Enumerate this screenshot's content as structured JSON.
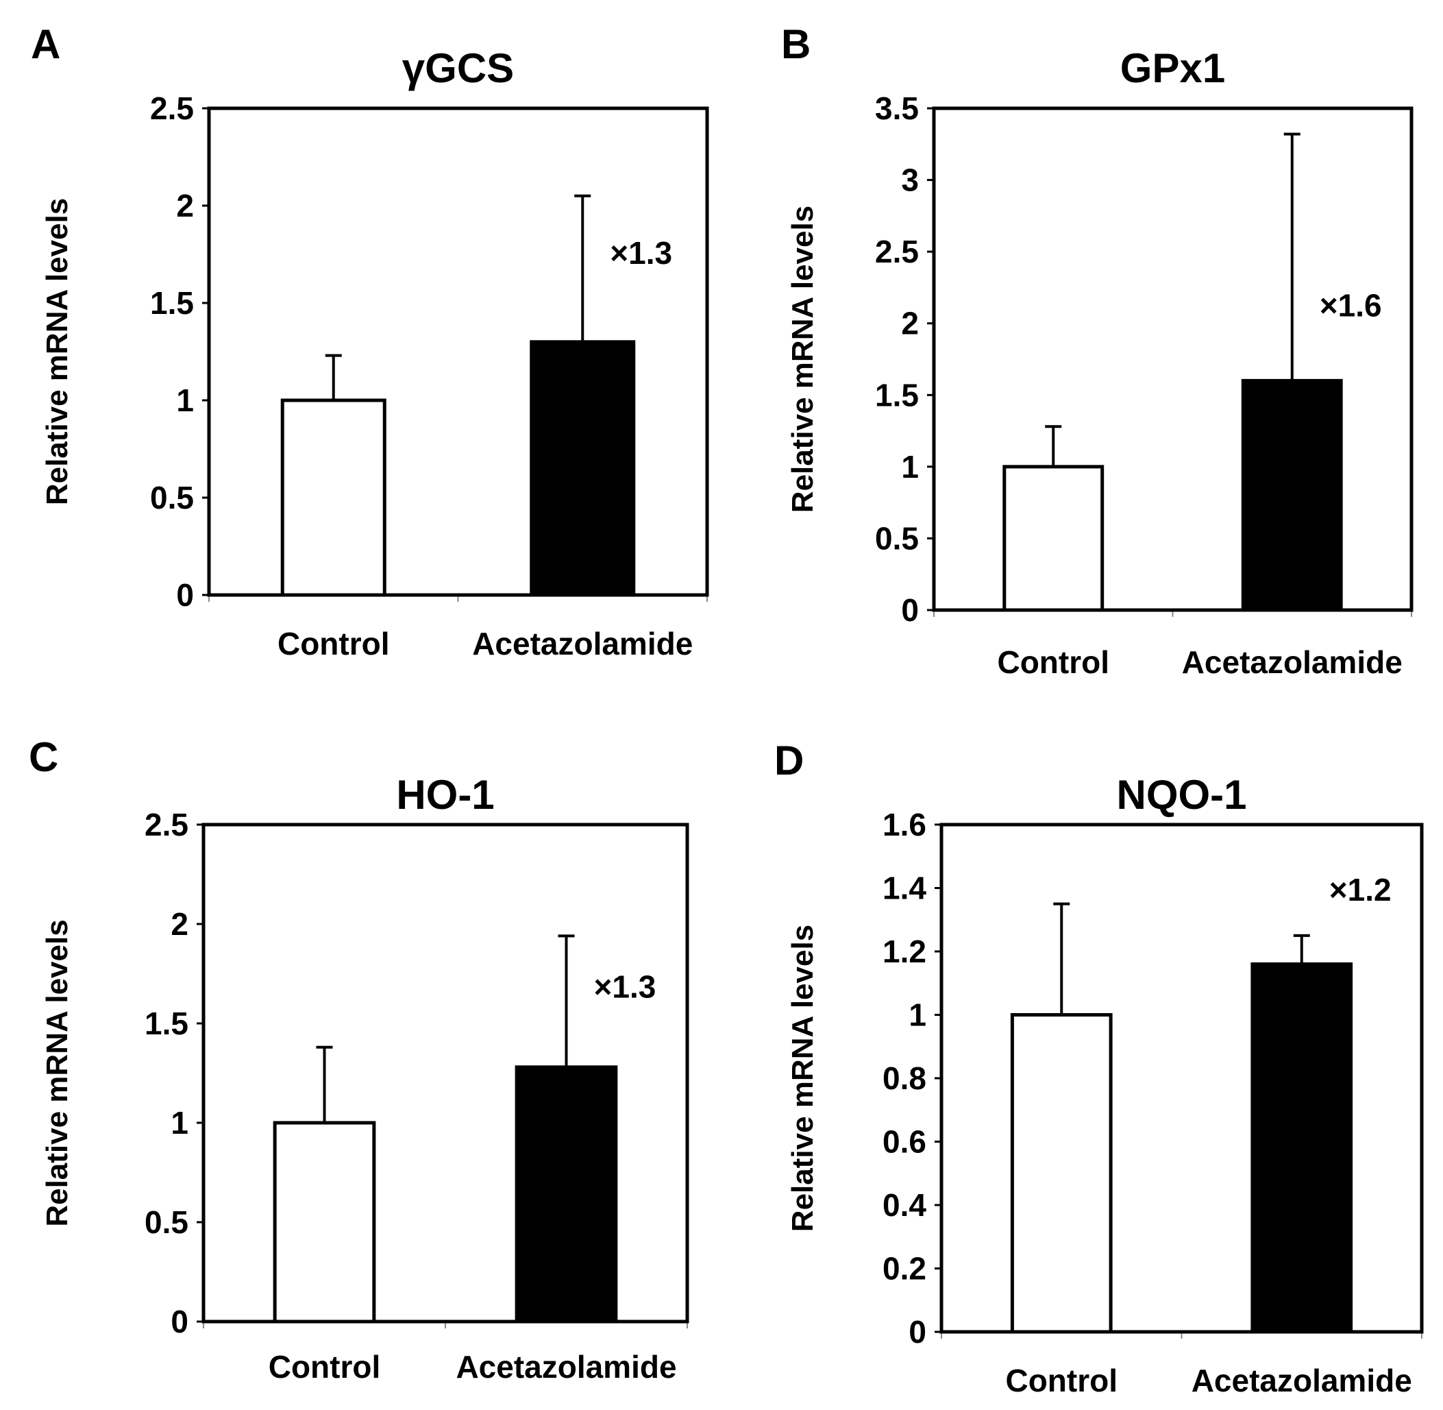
{
  "chart_data": [
    {
      "panel": "A",
      "type": "bar",
      "title": "γGCS",
      "ylabel": "Relative mRNA levels",
      "xlabel": "",
      "categories": [
        "Control",
        "Acetazolamide"
      ],
      "values": [
        1.0,
        1.3
      ],
      "errors": [
        0.23,
        0.75
      ],
      "bar_colors": [
        "#ffffff",
        "#000000"
      ],
      "ylim": [
        0,
        2.5
      ],
      "yticks": [
        0,
        0.5,
        1,
        1.5,
        2,
        2.5
      ],
      "ytick_labels": [
        "0",
        "0.5",
        "1",
        "1.5",
        "2",
        "2.5"
      ],
      "annotation": "×1.3",
      "annotation_value": 1.7
    },
    {
      "panel": "B",
      "type": "bar",
      "title": "GPx1",
      "ylabel": "Relative mRNA levels",
      "xlabel": "",
      "categories": [
        "Control",
        "Acetazolamide"
      ],
      "values": [
        1.0,
        1.6
      ],
      "errors": [
        0.28,
        1.72
      ],
      "bar_colors": [
        "#ffffff",
        "#000000"
      ],
      "ylim": [
        0,
        3.5
      ],
      "yticks": [
        0,
        0.5,
        1,
        1.5,
        2,
        2.5,
        3,
        3.5
      ],
      "ytick_labels": [
        "0",
        "0.5",
        "1",
        "1.5",
        "2",
        "2.5",
        "3",
        "3.5"
      ],
      "annotation": "×1.6",
      "annotation_value": 2.05
    },
    {
      "panel": "C",
      "type": "bar",
      "title": "HO-1",
      "ylabel": "Relative mRNA levels",
      "xlabel": "",
      "categories": [
        "Control",
        "Acetazolamide"
      ],
      "values": [
        1.0,
        1.28
      ],
      "errors": [
        0.38,
        0.66
      ],
      "bar_colors": [
        "#ffffff",
        "#000000"
      ],
      "ylim": [
        0,
        2.5
      ],
      "yticks": [
        0,
        0.5,
        1,
        1.5,
        2,
        2.5
      ],
      "ytick_labels": [
        "0",
        "0.5",
        "1",
        "1.5",
        "2",
        "2.5"
      ],
      "annotation": "×1.3",
      "annotation_value": 1.63
    },
    {
      "panel": "D",
      "type": "bar",
      "title": "NQO-1",
      "ylabel": "Relative mRNA levels",
      "xlabel": "",
      "categories": [
        "Control",
        "Acetazolamide"
      ],
      "values": [
        1.0,
        1.16
      ],
      "errors": [
        0.35,
        0.09
      ],
      "bar_colors": [
        "#ffffff",
        "#000000"
      ],
      "ylim": [
        0,
        1.6
      ],
      "yticks": [
        0,
        0.2,
        0.4,
        0.6,
        0.8,
        1,
        1.2,
        1.4,
        1.6
      ],
      "ytick_labels": [
        "0",
        "0.2",
        "0.4",
        "0.6",
        "0.8",
        "1",
        "1.2",
        "1.4",
        "1.6"
      ],
      "annotation": "×1.2",
      "annotation_value": 1.36
    }
  ]
}
